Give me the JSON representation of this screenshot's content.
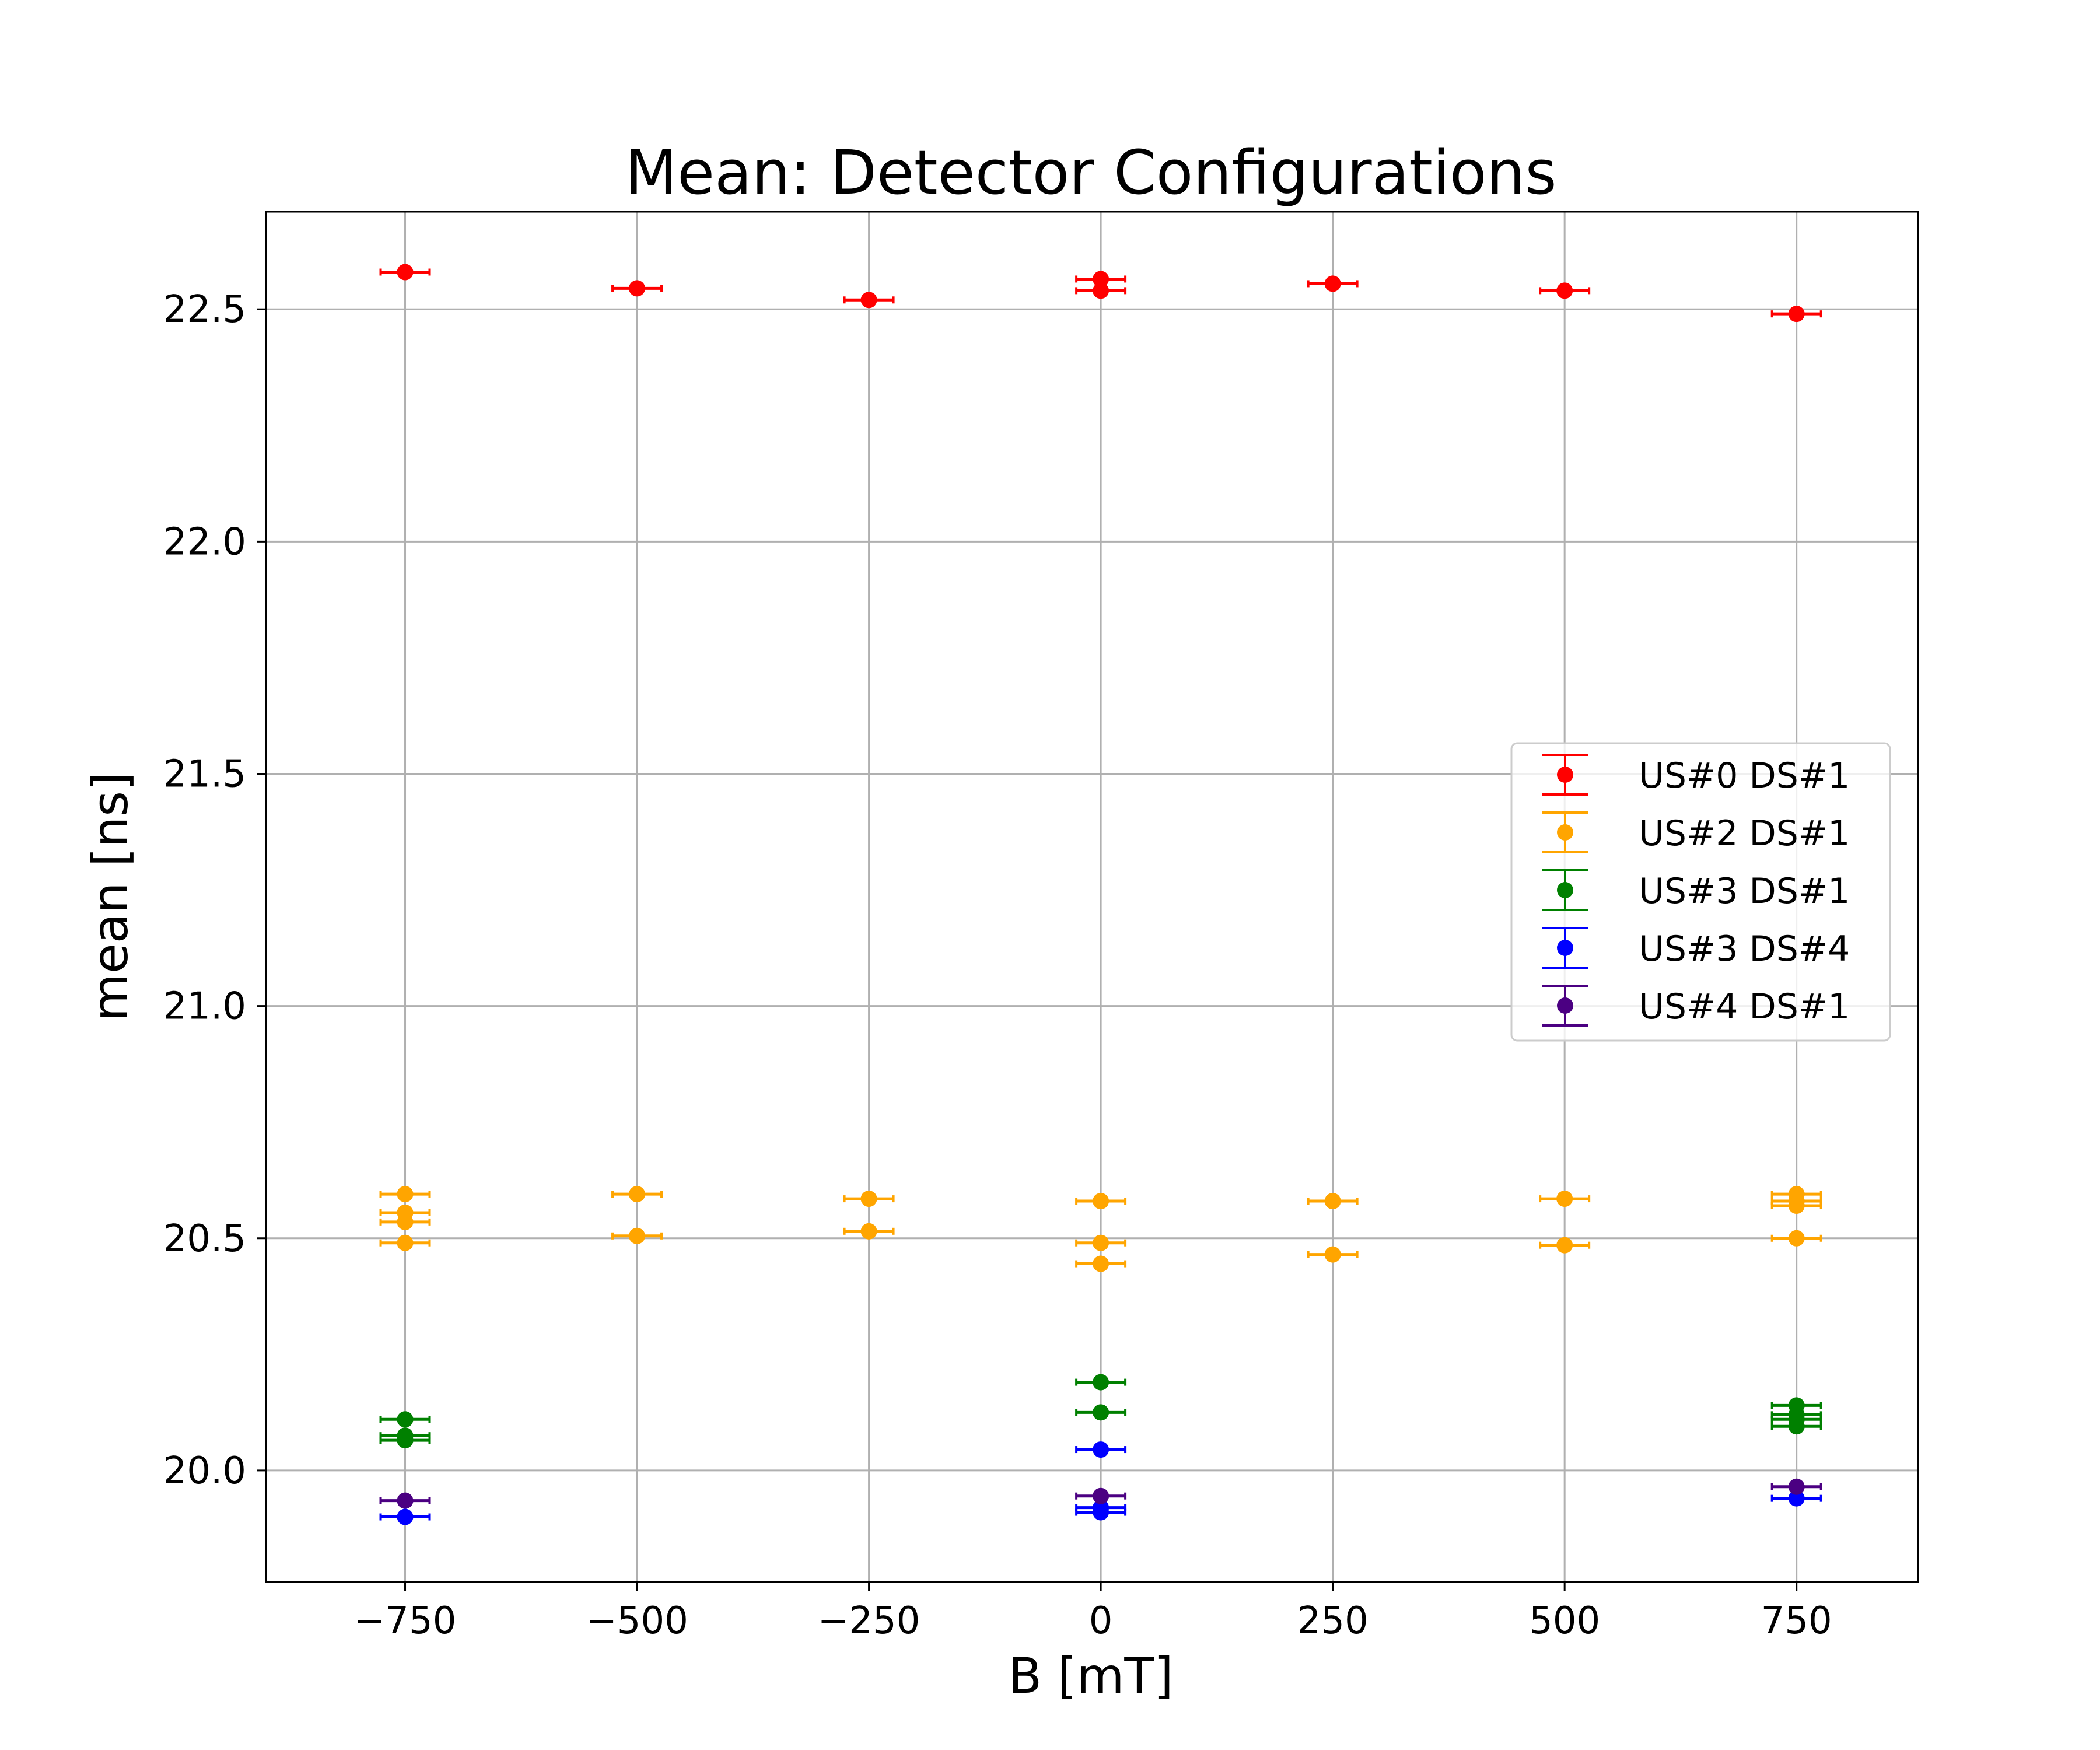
{
  "chart_data": {
    "type": "scatter",
    "title": "Mean: Detector Configurations",
    "xlabel": "B [mT]",
    "ylabel": "mean [ns]",
    "xlim": [
      -900,
      750
    ],
    "ylim": [
      19.76,
      22.71
    ],
    "xticks": [
      -750,
      -500,
      -250,
      0,
      250,
      500,
      750
    ],
    "xtick_labels": [
      "−750",
      "−500",
      "−250",
      "0",
      "250",
      "500",
      "750"
    ],
    "yticks": [
      20.0,
      20.5,
      21.0,
      21.5,
      22.0,
      22.5
    ],
    "ytick_labels": [
      "20.0",
      "20.5",
      "21.0",
      "21.5",
      "22.0",
      "22.5"
    ],
    "grid": true,
    "legend_position": "center-right",
    "error_bars": "horizontal caps",
    "series": [
      {
        "name": "US#0 DS#1",
        "color": "#ff0000",
        "points": [
          {
            "x": -750,
            "y": 22.58
          },
          {
            "x": -500,
            "y": 22.545
          },
          {
            "x": -250,
            "y": 22.52
          },
          {
            "x": 0,
            "y": 22.565
          },
          {
            "x": 0,
            "y": 22.54
          },
          {
            "x": 250,
            "y": 22.555
          },
          {
            "x": 500,
            "y": 22.54
          },
          {
            "x": 750,
            "y": 22.49
          }
        ]
      },
      {
        "name": "US#2 DS#1",
        "color": "#ffa500",
        "points": [
          {
            "x": -750,
            "y": 20.595
          },
          {
            "x": -750,
            "y": 20.555
          },
          {
            "x": -750,
            "y": 20.535
          },
          {
            "x": -750,
            "y": 20.49
          },
          {
            "x": -500,
            "y": 20.595
          },
          {
            "x": -500,
            "y": 20.505
          },
          {
            "x": -250,
            "y": 20.585
          },
          {
            "x": -250,
            "y": 20.515
          },
          {
            "x": 0,
            "y": 20.58
          },
          {
            "x": 0,
            "y": 20.49
          },
          {
            "x": 0,
            "y": 20.445
          },
          {
            "x": 250,
            "y": 20.58
          },
          {
            "x": 250,
            "y": 20.465
          },
          {
            "x": 500,
            "y": 20.585
          },
          {
            "x": 500,
            "y": 20.485
          },
          {
            "x": 750,
            "y": 20.595
          },
          {
            "x": 750,
            "y": 20.58
          },
          {
            "x": 750,
            "y": 20.57
          },
          {
            "x": 750,
            "y": 20.5
          }
        ]
      },
      {
        "name": "US#3 DS#1",
        "color": "#008000",
        "points": [
          {
            "x": -750,
            "y": 20.11
          },
          {
            "x": -750,
            "y": 20.075
          },
          {
            "x": -750,
            "y": 20.065
          },
          {
            "x": 0,
            "y": 20.19
          },
          {
            "x": 0,
            "y": 20.125
          },
          {
            "x": 750,
            "y": 20.14
          },
          {
            "x": 750,
            "y": 20.12
          },
          {
            "x": 750,
            "y": 20.11
          },
          {
            "x": 750,
            "y": 20.095
          }
        ]
      },
      {
        "name": "US#3 DS#4",
        "color": "#0000ff",
        "points": [
          {
            "x": -750,
            "y": 19.9
          },
          {
            "x": 0,
            "y": 20.045
          },
          {
            "x": 0,
            "y": 19.92
          },
          {
            "x": 0,
            "y": 19.91
          },
          {
            "x": 750,
            "y": 19.94
          }
        ]
      },
      {
        "name": "US#4 DS#1",
        "color": "#4b0082",
        "points": [
          {
            "x": -750,
            "y": 19.935
          },
          {
            "x": 0,
            "y": 19.945
          },
          {
            "x": 750,
            "y": 19.965
          }
        ]
      }
    ]
  }
}
